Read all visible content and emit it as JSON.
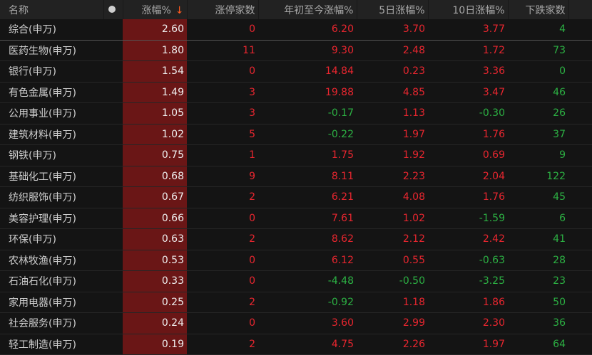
{
  "colors": {
    "up": "#e8262f",
    "down": "#2cb043",
    "highlight_column": "#6a1616"
  },
  "headers": {
    "name": "名称",
    "dot": "●",
    "change": "涨幅%",
    "sort_icon": "↓",
    "limit_up": "涨停家数",
    "ytd": "年初至今涨幅%",
    "d5": "5日涨幅%",
    "d10": "10日涨幅%",
    "decliners": "下跌家数"
  },
  "rows": [
    {
      "name": "综合(申万)",
      "change": "2.60",
      "limit_up": "0",
      "ytd": "6.20",
      "d5": "3.70",
      "d10": "3.77",
      "decliners": "4"
    },
    {
      "name": "医药生物(申万)",
      "change": "1.80",
      "limit_up": "11",
      "ytd": "9.30",
      "d5": "2.48",
      "d10": "1.72",
      "decliners": "73"
    },
    {
      "name": "银行(申万)",
      "change": "1.54",
      "limit_up": "0",
      "ytd": "14.84",
      "d5": "0.23",
      "d10": "3.36",
      "decliners": "0"
    },
    {
      "name": "有色金属(申万)",
      "change": "1.49",
      "limit_up": "3",
      "ytd": "19.88",
      "d5": "4.85",
      "d10": "3.47",
      "decliners": "46"
    },
    {
      "name": "公用事业(申万)",
      "change": "1.05",
      "limit_up": "3",
      "ytd": "-0.17",
      "d5": "1.13",
      "d10": "-0.30",
      "decliners": "26"
    },
    {
      "name": "建筑材料(申万)",
      "change": "1.02",
      "limit_up": "5",
      "ytd": "-0.22",
      "d5": "1.97",
      "d10": "1.76",
      "decliners": "37"
    },
    {
      "name": "钢铁(申万)",
      "change": "0.75",
      "limit_up": "1",
      "ytd": "1.75",
      "d5": "1.92",
      "d10": "0.69",
      "decliners": "9"
    },
    {
      "name": "基础化工(申万)",
      "change": "0.68",
      "limit_up": "9",
      "ytd": "8.11",
      "d5": "2.23",
      "d10": "2.04",
      "decliners": "122"
    },
    {
      "name": "纺织服饰(申万)",
      "change": "0.67",
      "limit_up": "2",
      "ytd": "6.21",
      "d5": "4.08",
      "d10": "1.76",
      "decliners": "45"
    },
    {
      "name": "美容护理(申万)",
      "change": "0.66",
      "limit_up": "0",
      "ytd": "7.61",
      "d5": "1.02",
      "d10": "-1.59",
      "decliners": "6"
    },
    {
      "name": "环保(申万)",
      "change": "0.63",
      "limit_up": "2",
      "ytd": "8.62",
      "d5": "2.12",
      "d10": "2.42",
      "decliners": "41"
    },
    {
      "name": "农林牧渔(申万)",
      "change": "0.53",
      "limit_up": "0",
      "ytd": "6.12",
      "d5": "0.55",
      "d10": "-0.63",
      "decliners": "28"
    },
    {
      "name": "石油石化(申万)",
      "change": "0.33",
      "limit_up": "0",
      "ytd": "-4.48",
      "d5": "-0.50",
      "d10": "-3.25",
      "decliners": "23"
    },
    {
      "name": "家用电器(申万)",
      "change": "0.25",
      "limit_up": "2",
      "ytd": "-0.92",
      "d5": "1.18",
      "d10": "1.86",
      "decliners": "50"
    },
    {
      "name": "社会服务(申万)",
      "change": "0.24",
      "limit_up": "0",
      "ytd": "3.60",
      "d5": "2.99",
      "d10": "2.30",
      "decliners": "36"
    },
    {
      "name": "轻工制造(申万)",
      "change": "0.19",
      "limit_up": "2",
      "ytd": "4.75",
      "d5": "2.26",
      "d10": "1.97",
      "decliners": "64"
    }
  ]
}
